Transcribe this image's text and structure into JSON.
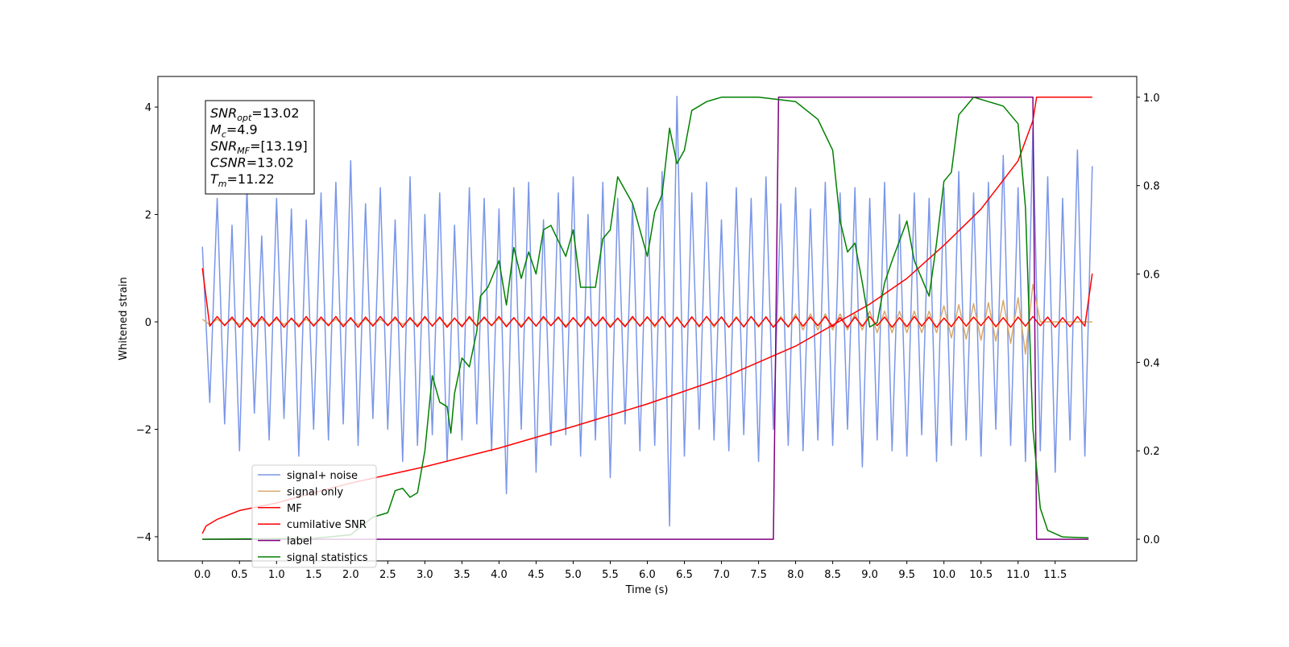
{
  "chart_data": {
    "type": "line",
    "xlabel": "Time (s)",
    "ylabel": "Whitened strain",
    "xlim": [
      -0.6,
      12.6
    ],
    "ylim": [
      -4.45,
      4.57
    ],
    "y2lim": [
      -0.049,
      1.047
    ],
    "xticks": [
      {
        "value": 0,
        "label": "0.0"
      },
      0.5,
      {
        "value": 1,
        "label": "1.0"
      },
      1.5,
      {
        "value": 2,
        "label": "2.0"
      },
      2.5,
      {
        "value": 3,
        "label": "3.0"
      },
      3.5,
      {
        "value": 4,
        "label": "4.0"
      },
      4.5,
      {
        "value": 5,
        "label": "5.0"
      },
      5.5,
      {
        "value": 6,
        "label": "6.0"
      },
      6.5,
      {
        "value": 7,
        "label": "7.0"
      },
      7.5,
      {
        "value": 8,
        "label": "8.0"
      },
      8.5,
      {
        "value": 9,
        "label": "9.0"
      },
      9.5,
      {
        "value": 10,
        "label": "10.0"
      },
      10.5,
      {
        "value": 11,
        "label": "11.0"
      },
      11.5
    ],
    "yticks": [
      {
        "value": -4,
        "label": "−4"
      },
      {
        "value": -2,
        "label": "−2"
      },
      0,
      2,
      4
    ],
    "y2ticks": [
      {
        "value": 0,
        "label": "0.0"
      },
      0.2,
      0.4,
      0.6,
      0.8,
      {
        "value": 1,
        "label": "1.0"
      }
    ],
    "legend": "lower left",
    "annotation": [
      {
        "name": "SNR",
        "sub": "opt",
        "text": "=13.02"
      },
      {
        "name": "M",
        "sub": "c",
        "text": "=4.9"
      },
      {
        "name": "SNR",
        "sub": "MF",
        "text": "=[13.19]"
      },
      {
        "name": "CSNR",
        "sub": null,
        "text": "=13.02"
      },
      {
        "name": "T",
        "sub": "m",
        "text": "=11.22"
      }
    ],
    "x": [
      0,
      0.1,
      0.2,
      0.3,
      0.4,
      0.5,
      0.6,
      0.7,
      0.8,
      0.9,
      1,
      1.1,
      1.2,
      1.3,
      1.4,
      1.5,
      1.6,
      1.7,
      1.8,
      1.9,
      2,
      2.1,
      2.2,
      2.3,
      2.4,
      2.5,
      2.6,
      2.7,
      2.8,
      2.9,
      3,
      3.1,
      3.2,
      3.3,
      3.4,
      3.5,
      3.6,
      3.7,
      3.8,
      3.9,
      4,
      4.1,
      4.2,
      4.3,
      4.4,
      4.5,
      4.6,
      4.7,
      4.8,
      4.9,
      5,
      5.1,
      5.2,
      5.3,
      5.4,
      5.5,
      5.6,
      5.7,
      5.8,
      5.9,
      6,
      6.1,
      6.2,
      6.3,
      6.4,
      6.5,
      6.6,
      6.7,
      6.8,
      6.9,
      7,
      7.1,
      7.2,
      7.3,
      7.4,
      7.5,
      7.6,
      7.7,
      7.8,
      7.9,
      8,
      8.1,
      8.2,
      8.3,
      8.4,
      8.5,
      8.6,
      8.7,
      8.8,
      8.9,
      9,
      9.1,
      9.2,
      9.3,
      9.4,
      9.5,
      9.6,
      9.7,
      9.8,
      9.9,
      10,
      10.1,
      10.2,
      10.3,
      10.4,
      10.5,
      10.6,
      10.7,
      10.8,
      10.9,
      11,
      11.1,
      11.2,
      11.3,
      11.4,
      11.5,
      11.6,
      11.7,
      11.8,
      11.9,
      12
    ],
    "series": [
      {
        "name": "signal+ noise",
        "color": "#7a96e8",
        "values": [
          1.4,
          -1.5,
          2.3,
          -1.9,
          1.8,
          -2.4,
          2.5,
          -1.7,
          1.6,
          -2.2,
          2.3,
          -1.8,
          2.1,
          -2.5,
          1.9,
          -2.0,
          2.4,
          -2.2,
          2.6,
          -1.9,
          3.0,
          -2.3,
          2.2,
          -1.8,
          2.5,
          -2.0,
          1.9,
          -2.6,
          2.7,
          -2.3,
          2.0,
          -2.1,
          2.4,
          -2.6,
          1.8,
          -2.2,
          2.5,
          -1.9,
          2.3,
          -2.4,
          2.1,
          -3.2,
          2.5,
          -2.0,
          2.6,
          -2.8,
          1.9,
          -2.3,
          2.4,
          -2.1,
          2.7,
          -2.5,
          2.0,
          -2.2,
          2.6,
          -2.9,
          2.3,
          -1.9,
          2.2,
          -2.4,
          2.5,
          -2.3,
          2.8,
          -3.8,
          4.2,
          -2.5,
          2.4,
          -2.0,
          2.6,
          -2.2,
          1.9,
          -2.4,
          2.5,
          -2.1,
          2.3,
          -2.6,
          2.7,
          -2.0,
          2.2,
          -2.3,
          2.5,
          -2.4,
          2.1,
          -2.2,
          2.6,
          -2.3,
          2.4,
          -2.0,
          2.5,
          -2.7,
          2.3,
          -2.2,
          2.6,
          -2.4,
          2.0,
          -2.5,
          2.4,
          -2.1,
          2.3,
          -2.6,
          2.5,
          -2.3,
          2.8,
          -2.2,
          2.4,
          -2.5,
          2.6,
          -2.0,
          3.1,
          -2.3,
          2.5,
          -2.6,
          3.6,
          -2.4,
          2.7,
          -2.8,
          2.3,
          -2.2,
          3.2,
          -2.5,
          2.9
        ]
      },
      {
        "name": "signal only",
        "color": "#d9a868",
        "values": [
          0.05,
          -0.05,
          0.05,
          -0.05,
          0.05,
          -0.05,
          0.05,
          -0.05,
          0.05,
          -0.05,
          0.05,
          -0.05,
          0.05,
          -0.05,
          0.05,
          -0.05,
          0.05,
          -0.05,
          0.05,
          -0.05,
          0.05,
          -0.05,
          0.05,
          -0.05,
          0.05,
          -0.05,
          0.05,
          -0.05,
          0.05,
          -0.05,
          0.07,
          -0.07,
          0.07,
          -0.07,
          0.07,
          -0.07,
          0.07,
          -0.07,
          0.07,
          -0.07,
          0.07,
          -0.07,
          0.07,
          -0.07,
          0.07,
          -0.07,
          0.07,
          -0.07,
          0.07,
          -0.07,
          0.07,
          -0.07,
          0.07,
          -0.07,
          0.07,
          -0.07,
          0.07,
          -0.07,
          0.07,
          -0.07,
          0.1,
          -0.1,
          0.1,
          -0.1,
          0.1,
          -0.1,
          0.1,
          -0.1,
          0.1,
          -0.1,
          0.1,
          -0.1,
          0.1,
          -0.1,
          0.1,
          -0.1,
          0.1,
          -0.1,
          0.1,
          -0.1,
          0.15,
          -0.15,
          0.15,
          -0.15,
          0.15,
          -0.15,
          0.15,
          -0.15,
          0.15,
          -0.15,
          0.2,
          -0.2,
          0.2,
          -0.2,
          0.2,
          -0.2,
          0.2,
          -0.2,
          0.2,
          -0.2,
          0.3,
          -0.3,
          0.32,
          -0.32,
          0.34,
          -0.34,
          0.36,
          -0.36,
          0.4,
          -0.4,
          0.45,
          -0.6,
          0.7,
          0,
          0,
          0,
          0,
          0,
          0,
          0,
          0
        ]
      },
      {
        "name": "MF",
        "color": "#ff0000",
        "values": [
          1.0,
          -0.08,
          0.1,
          -0.07,
          0.09,
          -0.1,
          0.08,
          -0.09,
          0.1,
          -0.08,
          0.09,
          -0.1,
          0.07,
          -0.09,
          0.1,
          -0.08,
          0.09,
          -0.07,
          0.1,
          -0.09,
          0.08,
          -0.1,
          0.09,
          -0.08,
          0.1,
          -0.07,
          0.09,
          -0.1,
          0.08,
          -0.09,
          0.1,
          -0.08,
          0.09,
          -0.1,
          0.07,
          -0.09,
          0.1,
          -0.08,
          0.09,
          -0.07,
          0.1,
          -0.09,
          0.08,
          -0.1,
          0.09,
          -0.08,
          0.1,
          -0.07,
          0.09,
          -0.1,
          0.08,
          -0.09,
          0.1,
          -0.08,
          0.09,
          -0.1,
          0.07,
          -0.09,
          0.1,
          -0.08,
          0.09,
          -0.07,
          0.1,
          -0.09,
          0.08,
          -0.1,
          0.09,
          -0.08,
          0.1,
          -0.07,
          0.09,
          -0.1,
          0.08,
          -0.09,
          0.1,
          -0.08,
          0.09,
          -0.1,
          0.07,
          -0.09,
          0.1,
          -0.08,
          0.09,
          -0.07,
          0.1,
          -0.09,
          0.08,
          -0.1,
          0.09,
          -0.08,
          0.1,
          -0.07,
          0.09,
          -0.1,
          0.08,
          -0.09,
          0.1,
          -0.08,
          0.09,
          -0.1,
          0.07,
          -0.09,
          0.1,
          -0.08,
          0.09,
          -0.07,
          0.1,
          -0.09,
          0.08,
          -0.1,
          0.09,
          -0.08,
          0.1,
          -0.07,
          0.09,
          -0.1,
          0.08,
          -0.09,
          0.1,
          -0.08,
          0.9
        ]
      },
      {
        "name": "cumilative SNR",
        "color": "#ff0000",
        "axis": "y2",
        "x": [
          0,
          0.05,
          0.2,
          0.5,
          1,
          1.5,
          2,
          3,
          4,
          5,
          6,
          7,
          8,
          9,
          9.5,
          10,
          10.5,
          11,
          11.2,
          11.25,
          12
        ],
        "values": [
          0.013,
          0.03,
          0.045,
          0.065,
          0.082,
          0.105,
          0.127,
          0.164,
          0.206,
          0.255,
          0.306,
          0.364,
          0.437,
          0.532,
          0.59,
          0.665,
          0.747,
          0.856,
          0.947,
          1.0,
          1.0
        ]
      },
      {
        "name": "label",
        "color": "#800080",
        "axis": "y2",
        "x": [
          0,
          7.7,
          7.77,
          11.2,
          11.25,
          11.95
        ],
        "values": [
          0,
          0,
          1,
          1,
          0,
          0
        ]
      },
      {
        "name": "signal statistics",
        "color": "#008000",
        "axis": "y2",
        "x": [
          0,
          1.5,
          2.0,
          2.3,
          2.5,
          2.6,
          2.7,
          2.8,
          2.9,
          3.0,
          3.1,
          3.2,
          3.3,
          3.35,
          3.4,
          3.5,
          3.6,
          3.7,
          3.75,
          3.85,
          4.0,
          4.1,
          4.2,
          4.3,
          4.4,
          4.5,
          4.6,
          4.7,
          4.9,
          5.0,
          5.1,
          5.3,
          5.4,
          5.5,
          5.6,
          5.8,
          6.0,
          6.1,
          6.2,
          6.3,
          6.4,
          6.5,
          6.6,
          6.8,
          7.0,
          7.5,
          8.0,
          8.3,
          8.5,
          8.6,
          8.7,
          8.8,
          8.9,
          9.0,
          9.1,
          9.2,
          9.3,
          9.5,
          9.6,
          9.8,
          9.9,
          10.0,
          10.1,
          10.2,
          10.4,
          10.6,
          10.8,
          11.0,
          11.1,
          11.2,
          11.3,
          11.4,
          11.6,
          11.95
        ],
        "values": [
          0,
          0.002,
          0.01,
          0.05,
          0.06,
          0.11,
          0.115,
          0.095,
          0.105,
          0.2,
          0.37,
          0.31,
          0.3,
          0.24,
          0.33,
          0.41,
          0.39,
          0.47,
          0.55,
          0.57,
          0.63,
          0.53,
          0.66,
          0.59,
          0.65,
          0.6,
          0.7,
          0.71,
          0.64,
          0.7,
          0.57,
          0.57,
          0.68,
          0.7,
          0.82,
          0.76,
          0.64,
          0.74,
          0.78,
          0.93,
          0.85,
          0.88,
          0.97,
          0.99,
          1.0,
          1.0,
          0.99,
          0.95,
          0.88,
          0.72,
          0.65,
          0.67,
          0.58,
          0.48,
          0.49,
          0.58,
          0.63,
          0.72,
          0.63,
          0.55,
          0.67,
          0.81,
          0.83,
          0.96,
          1.0,
          0.99,
          0.98,
          0.94,
          0.75,
          0.25,
          0.07,
          0.02,
          0.005,
          0.003
        ]
      }
    ]
  }
}
